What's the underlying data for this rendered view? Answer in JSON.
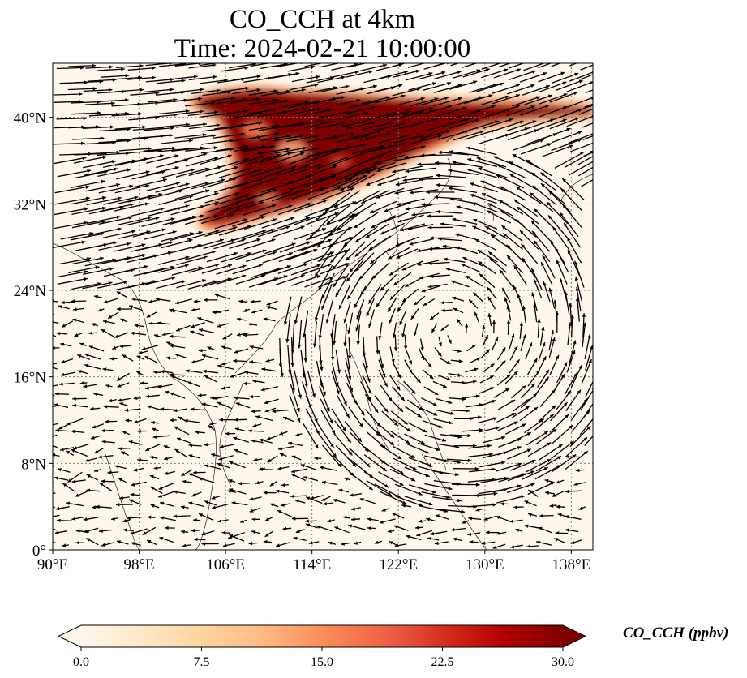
{
  "title": {
    "line1": "CO_CCH at 4km",
    "line2": "Time: 2024-02-21 10:00:00"
  },
  "map": {
    "lon_range": [
      90,
      140
    ],
    "lat_range": [
      0,
      45
    ],
    "lon_ticks": [
      {
        "value": 90,
        "label": "90°E"
      },
      {
        "value": 98,
        "label": "98°E"
      },
      {
        "value": 106,
        "label": "106°E"
      },
      {
        "value": 114,
        "label": "114°E"
      },
      {
        "value": 122,
        "label": "122°E"
      },
      {
        "value": 130,
        "label": "130°E"
      },
      {
        "value": 138,
        "label": "138°E"
      }
    ],
    "lat_ticks": [
      {
        "value": 0,
        "label": "0°"
      },
      {
        "value": 8,
        "label": "8°N"
      },
      {
        "value": 16,
        "label": "16°N"
      },
      {
        "value": 24,
        "label": "24°N"
      },
      {
        "value": 32,
        "label": "32°N"
      },
      {
        "value": 40,
        "label": "40°N"
      }
    ],
    "gridlines": true,
    "colormap": "OrRd",
    "plume_color": "#7f0000",
    "background_color": "#fff7ec"
  },
  "colorbar": {
    "label": "CO_CCH (ppbv)",
    "range": [
      0,
      30
    ],
    "extend": "both",
    "ticks": [
      {
        "value": 0,
        "label": "0.0"
      },
      {
        "value": 7.5,
        "label": "7.5"
      },
      {
        "value": 15,
        "label": "15.0"
      },
      {
        "value": 22.5,
        "label": "22.5"
      },
      {
        "value": 30,
        "label": "30.0"
      }
    ],
    "colors": [
      "#fff7ec",
      "#fee8c8",
      "#fdd49e",
      "#fdbb84",
      "#fc8d59",
      "#ef6548",
      "#d7301f",
      "#b30000",
      "#7f0000"
    ]
  }
}
